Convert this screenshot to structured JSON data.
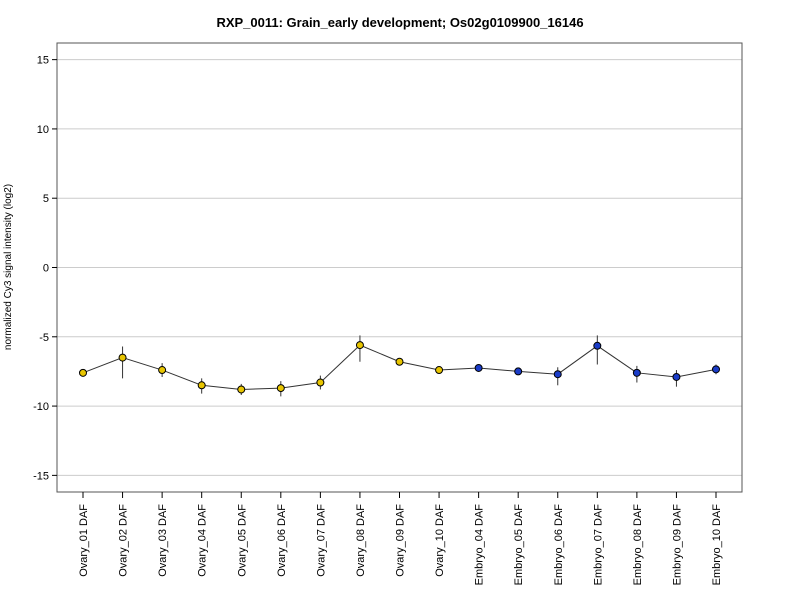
{
  "chart_data": {
    "type": "line",
    "title": "RXP_0011: Grain_early development; Os02g0109900_16146",
    "xlabel": "",
    "ylabel": "normalized Cy3 signal intensity (log2)",
    "ylim": [
      -16.2,
      16.2
    ],
    "yticks": [
      -15,
      -10,
      -5,
      0,
      5,
      10,
      15
    ],
    "ytick_labels": [
      "-15",
      "-10",
      "-5",
      "0",
      "5",
      "10",
      "15"
    ],
    "grid": "horizontal",
    "categories": [
      "Ovary_01 DAF",
      "Ovary_02 DAF",
      "Ovary_03 DAF",
      "Ovary_04 DAF",
      "Ovary_05 DAF",
      "Ovary_06 DAF",
      "Ovary_07 DAF",
      "Ovary_08 DAF",
      "Ovary_09 DAF",
      "Ovary_10 DAF",
      "Embryo_04 DAF",
      "Embryo_05 DAF",
      "Embryo_06 DAF",
      "Embryo_07 DAF",
      "Embryo_08 DAF",
      "Embryo_09 DAF",
      "Embryo_10 DAF"
    ],
    "series": [
      {
        "values": [
          -7.6,
          -6.5,
          -7.4,
          -8.5,
          -8.8,
          -8.7,
          -8.3,
          -5.6,
          -6.8,
          -7.4,
          -7.25,
          -7.5,
          -7.7,
          -5.65,
          -7.6,
          -7.9,
          -7.35
        ],
        "err_low": [
          -7.6,
          -8.0,
          -7.9,
          -9.1,
          -9.2,
          -9.3,
          -8.8,
          -6.8,
          -6.9,
          -7.5,
          -7.25,
          -7.6,
          -8.5,
          -7.0,
          -8.3,
          -8.6,
          -7.7
        ],
        "err_high": [
          -7.6,
          -5.7,
          -6.9,
          -8.0,
          -8.4,
          -8.2,
          -7.8,
          -4.9,
          -6.6,
          -7.3,
          -7.2,
          -7.4,
          -7.2,
          -4.9,
          -7.1,
          -7.4,
          -7.0
        ],
        "point_colors": [
          "#e8c500",
          "#e8c500",
          "#e8c500",
          "#e8c500",
          "#e8c500",
          "#e8c500",
          "#e8c500",
          "#e8c500",
          "#e8c500",
          "#e8c500",
          "#1a3cc8",
          "#1a3cc8",
          "#1a3cc8",
          "#1a3cc8",
          "#1a3cc8",
          "#1a3cc8",
          "#1a3cc8"
        ]
      }
    ]
  }
}
